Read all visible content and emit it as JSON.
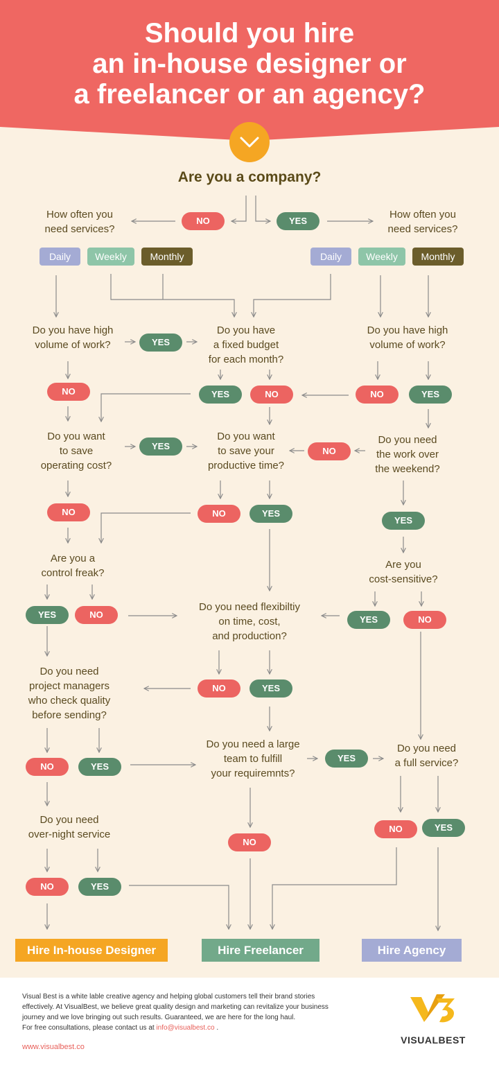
{
  "title": {
    "line1": "Should you hire",
    "line2": "an in-house designer or",
    "line3": "a freelancer or an agency?"
  },
  "colors": {
    "header": "#ef6762",
    "background": "#fbf1e2",
    "yes": "#5a8c6c",
    "no": "#ec6461",
    "accent": "#f5a623"
  },
  "icons": {
    "chevron": "chevron-down-icon",
    "logo": "visualbest-logo-icon"
  },
  "start": "Are you a company?",
  "answers": {
    "yes": "YES",
    "no": "NO"
  },
  "frequency": {
    "daily": "Daily",
    "weekly": "Weekly",
    "monthly": "Monthly"
  },
  "questions": {
    "how_often_l1": "How often you",
    "how_often_l2": "need services?",
    "high_volume_l1": "Do you have high",
    "high_volume_l2": "volume of work?",
    "fixed_budget_l1": "Do you have",
    "fixed_budget_l2": "a fixed budget",
    "fixed_budget_l3": "for each month?",
    "save_cost_l1": "Do you want",
    "save_cost_l2": "to save",
    "save_cost_l3": "operating cost?",
    "save_time_l1": "Do you want",
    "save_time_l2": "to save your",
    "save_time_l3": "productive time?",
    "weekend_l1": "Do you need",
    "weekend_l2": "the work over",
    "weekend_l3": "the weekend?",
    "control_l1": "Are you a",
    "control_l2": "control freak?",
    "cost_sensitive_l1": "Are you",
    "cost_sensitive_l2": "cost-sensitive?",
    "flex_l1": "Do you need flexibiltiy",
    "flex_l2": "on time, cost,",
    "flex_l3": "and production?",
    "pm_l1": "Do you need",
    "pm_l2": "project managers",
    "pm_l3": "who check quality",
    "pm_l4": "before sending?",
    "large_team_l1": "Do you need a large",
    "large_team_l2": "team to fulfill",
    "large_team_l3": "your requiremnts?",
    "full_service_l1": "Do you need",
    "full_service_l2": "a full service?",
    "overnight_l1": "Do you need",
    "overnight_l2": "over-night service"
  },
  "results": {
    "inhouse": "Hire In-house Designer",
    "freelancer": "Hire Freelancer",
    "agency": "Hire Agency"
  },
  "footer": {
    "line1": "Visual Best is a white lable creative agency and helping global customers tell their brand stories",
    "line2": "effectively. At VisualBest, we believe great quality design and marketing can revitalize your business",
    "line3": "journey and we love bringing out such results. Guaranteed, we are here for the long haul.",
    "line4": "For free consultations, please contact us at",
    "email": "info@visualbest.co",
    "line4_end": " .",
    "url": "www.visualbest.co",
    "brand": "VISUALBEST"
  }
}
